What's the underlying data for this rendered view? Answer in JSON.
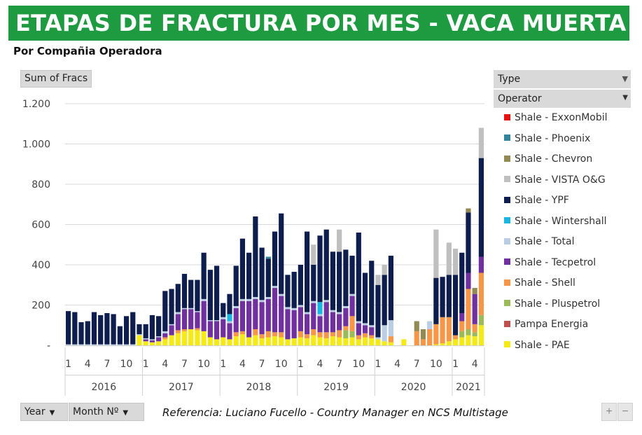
{
  "header": {
    "title": "ETAPAS DE FRACTURA POR MES -  VACA MUERTA",
    "subtitle": "Por Compañia Operadora"
  },
  "pivot": {
    "values_button": "Sum of Fracs",
    "legend_field": "Type",
    "legend_subfield": "Operator",
    "row_field_year": "Year",
    "row_field_month": "Month Nº"
  },
  "footer": {
    "reference": "Referencia: Luciano Fucello - Country Manager en NCS Multistage",
    "zoom_in": "+",
    "zoom_out": "−"
  },
  "chart_data": {
    "type": "bar",
    "stacked": true,
    "ylim": [
      0,
      1200
    ],
    "yticks": [
      0,
      200,
      400,
      600,
      800,
      1000,
      1200
    ],
    "ytick_labels": [
      "-",
      "200",
      "400",
      "600",
      "800",
      "1.000",
      "1.200"
    ],
    "grid": true,
    "legend_position": "right",
    "month_ticks": [
      "1",
      "4",
      "7",
      "10"
    ],
    "years": [
      {
        "label": "2016",
        "months": 12
      },
      {
        "label": "2017",
        "months": 12
      },
      {
        "label": "2018",
        "months": 12
      },
      {
        "label": "2019",
        "months": 12
      },
      {
        "label": "2020",
        "months": 12
      },
      {
        "label": "2021",
        "months": 5
      }
    ],
    "series": [
      {
        "name": "Shale - PAE",
        "color": "#f5ea14",
        "values": [
          0,
          0,
          0,
          0,
          0,
          0,
          0,
          0,
          0,
          0,
          0,
          50,
          20,
          15,
          20,
          30,
          50,
          60,
          70,
          80,
          75,
          70,
          40,
          30,
          40,
          30,
          45,
          55,
          40,
          50,
          35,
          40,
          45,
          40,
          30,
          35,
          40,
          35,
          50,
          40,
          35,
          45,
          40,
          35,
          40,
          30,
          40,
          35,
          30,
          20,
          15,
          0,
          30,
          0,
          0,
          0,
          0,
          5,
          10,
          20,
          30,
          40,
          50,
          45,
          100
        ]
      },
      {
        "name": "Pampa Energia",
        "color": "#c0504d",
        "values": [
          0,
          0,
          0,
          0,
          0,
          0,
          0,
          0,
          0,
          0,
          0,
          0,
          0,
          0,
          0,
          0,
          0,
          0,
          0,
          0,
          0,
          0,
          0,
          0,
          0,
          0,
          0,
          0,
          0,
          0,
          0,
          0,
          0,
          0,
          0,
          0,
          0,
          0,
          0,
          0,
          0,
          0,
          0,
          0,
          0,
          0,
          0,
          0,
          0,
          0,
          0,
          0,
          0,
          0,
          0,
          0,
          0,
          0,
          0,
          0,
          0,
          0,
          0,
          0,
          0
        ]
      },
      {
        "name": "Shale - Pluspetrol",
        "color": "#9bbb59",
        "values": [
          0,
          0,
          0,
          0,
          0,
          0,
          0,
          0,
          0,
          0,
          0,
          0,
          0,
          0,
          0,
          0,
          0,
          0,
          0,
          0,
          0,
          0,
          0,
          0,
          0,
          0,
          0,
          0,
          0,
          0,
          0,
          0,
          0,
          0,
          0,
          0,
          0,
          0,
          0,
          0,
          0,
          0,
          0,
          40,
          30,
          0,
          0,
          0,
          0,
          0,
          0,
          0,
          0,
          0,
          0,
          0,
          0,
          0,
          0,
          0,
          0,
          30,
          30,
          20,
          50
        ]
      },
      {
        "name": "Shale - Shell",
        "color": "#f79646",
        "values": [
          0,
          0,
          0,
          0,
          0,
          0,
          0,
          0,
          0,
          0,
          0,
          0,
          0,
          0,
          0,
          10,
          0,
          15,
          10,
          0,
          10,
          0,
          0,
          0,
          0,
          0,
          20,
          15,
          0,
          30,
          20,
          30,
          20,
          25,
          0,
          0,
          30,
          20,
          30,
          25,
          30,
          20,
          35,
          20,
          75,
          20,
          20,
          15,
          0,
          0,
          30,
          0,
          0,
          0,
          70,
          30,
          80,
          100,
          130,
          120,
          20,
          50,
          200,
          40,
          210
        ]
      },
      {
        "name": "Shale - Tecpetrol",
        "color": "#7030a0",
        "values": [
          0,
          0,
          0,
          0,
          0,
          0,
          0,
          0,
          0,
          0,
          0,
          0,
          10,
          10,
          20,
          20,
          50,
          80,
          100,
          100,
          80,
          150,
          80,
          90,
          90,
          80,
          120,
          150,
          180,
          150,
          160,
          160,
          220,
          180,
          150,
          140,
          120,
          100,
          130,
          80,
          150,
          100,
          80,
          90,
          100,
          60,
          40,
          40,
          0,
          0,
          0,
          0,
          0,
          0,
          0,
          0,
          0,
          0,
          0,
          0,
          0,
          40,
          80,
          150,
          80
        ]
      },
      {
        "name": "Shale - Total",
        "color": "#b9cde5",
        "values": [
          5,
          5,
          5,
          5,
          5,
          5,
          5,
          5,
          5,
          5,
          5,
          5,
          5,
          5,
          5,
          10,
          5,
          10,
          5,
          5,
          5,
          10,
          5,
          5,
          10,
          10,
          10,
          10,
          10,
          10,
          10,
          10,
          10,
          10,
          10,
          10,
          10,
          10,
          10,
          10,
          10,
          10,
          10,
          10,
          10,
          10,
          10,
          10,
          10,
          80,
          80,
          0,
          0,
          0,
          0,
          0,
          40,
          0,
          0,
          0,
          0,
          0,
          0,
          0,
          0
        ]
      },
      {
        "name": "Shale - Wintershall",
        "color": "#17b7e2",
        "values": [
          0,
          0,
          0,
          0,
          0,
          0,
          0,
          0,
          0,
          0,
          0,
          0,
          0,
          0,
          0,
          0,
          0,
          0,
          0,
          0,
          0,
          0,
          0,
          0,
          0,
          35,
          0,
          0,
          0,
          0,
          0,
          0,
          0,
          0,
          0,
          0,
          0,
          0,
          0,
          60,
          0,
          0,
          0,
          0,
          0,
          0,
          0,
          0,
          0,
          0,
          0,
          0,
          0,
          0,
          0,
          0,
          0,
          0,
          0,
          0,
          0,
          0,
          0,
          0,
          0
        ]
      },
      {
        "name": "Shale - YPF",
        "color": "#0c1d4e",
        "values": [
          165,
          160,
          110,
          115,
          160,
          145,
          155,
          150,
          90,
          140,
          160,
          50,
          70,
          120,
          100,
          200,
          175,
          140,
          170,
          140,
          155,
          230,
          250,
          270,
          70,
          100,
          200,
          300,
          230,
          400,
          260,
          190,
          270,
          400,
          160,
          180,
          200,
          400,
          180,
          330,
          350,
          290,
          300,
          280,
          190,
          440,
          250,
          320,
          260,
          250,
          320,
          0,
          0,
          0,
          0,
          0,
          0,
          230,
          200,
          210,
          300,
          300,
          300,
          0,
          490
        ]
      },
      {
        "name": "Shale - VISTA O&G",
        "color": "#bfbfbf",
        "values": [
          0,
          0,
          0,
          0,
          0,
          0,
          0,
          0,
          0,
          0,
          0,
          0,
          0,
          0,
          0,
          0,
          0,
          0,
          0,
          0,
          0,
          0,
          0,
          0,
          0,
          0,
          0,
          0,
          0,
          0,
          0,
          0,
          0,
          0,
          0,
          0,
          0,
          0,
          100,
          0,
          0,
          0,
          110,
          0,
          0,
          0,
          0,
          0,
          50,
          50,
          0,
          0,
          0,
          0,
          0,
          0,
          0,
          240,
          0,
          160,
          130,
          0,
          0,
          0,
          150
        ]
      },
      {
        "name": "Shale - Chevron",
        "color": "#938953",
        "values": [
          0,
          0,
          0,
          0,
          0,
          0,
          0,
          0,
          0,
          0,
          0,
          0,
          0,
          0,
          0,
          0,
          0,
          0,
          0,
          0,
          0,
          0,
          0,
          0,
          0,
          0,
          0,
          0,
          0,
          0,
          0,
          0,
          0,
          0,
          0,
          0,
          0,
          0,
          0,
          0,
          0,
          0,
          0,
          0,
          0,
          0,
          0,
          0,
          0,
          0,
          0,
          0,
          0,
          0,
          50,
          50,
          0,
          0,
          0,
          0,
          0,
          0,
          20,
          30,
          0
        ]
      },
      {
        "name": "Shale - Phoenix",
        "color": "#31859c",
        "values": [
          0,
          0,
          0,
          0,
          0,
          0,
          0,
          0,
          0,
          0,
          0,
          0,
          0,
          0,
          0,
          0,
          0,
          0,
          0,
          0,
          0,
          0,
          0,
          0,
          0,
          0,
          0,
          0,
          0,
          0,
          0,
          10,
          0,
          0,
          0,
          0,
          0,
          0,
          0,
          0,
          0,
          0,
          0,
          0,
          0,
          0,
          0,
          0,
          0,
          0,
          0,
          0,
          0,
          0,
          0,
          0,
          0,
          0,
          0,
          0,
          0,
          0,
          0,
          0,
          0
        ]
      },
      {
        "name": "Shale - ExxonMobil",
        "color": "#e8100f",
        "values": [
          0,
          0,
          0,
          0,
          0,
          0,
          0,
          0,
          0,
          0,
          0,
          0,
          0,
          0,
          0,
          0,
          0,
          0,
          0,
          0,
          0,
          0,
          0,
          0,
          0,
          0,
          0,
          0,
          0,
          0,
          0,
          0,
          0,
          0,
          0,
          0,
          0,
          0,
          0,
          0,
          0,
          0,
          0,
          0,
          0,
          0,
          0,
          0,
          0,
          0,
          0,
          0,
          0,
          0,
          0,
          0,
          0,
          0,
          0,
          0,
          0,
          0,
          0,
          0,
          0
        ]
      }
    ]
  }
}
